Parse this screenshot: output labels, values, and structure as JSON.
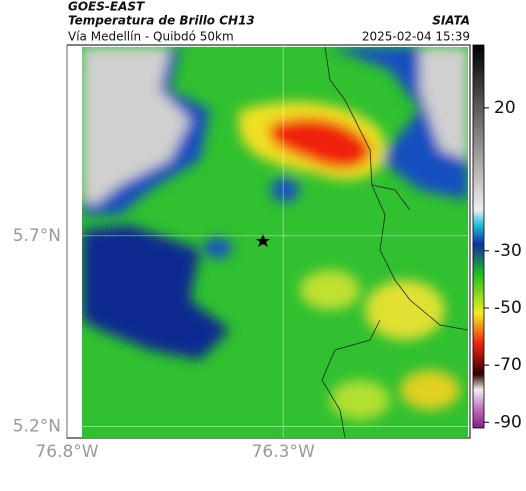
{
  "header": {
    "source": "GOES-EAST",
    "title": "Temperatura de Brillo CH13",
    "subtitle": "Vía Medellín - Quibdó 50km",
    "org": "SIATA",
    "datetime": "2025-02-04 15:39"
  },
  "map": {
    "xlim": [
      -76.8,
      -75.868
    ],
    "ylim": [
      5.17,
      6.2
    ],
    "xticks": [
      {
        "value": -76.8,
        "label": "76.8°W"
      },
      {
        "value": -76.3,
        "label": "76.3°W"
      }
    ],
    "yticks": [
      {
        "value": 5.7,
        "label": "5.7°N"
      },
      {
        "value": 5.2,
        "label": "5.2°N"
      }
    ],
    "grid": true
  },
  "colorbar": {
    "lim": [
      42,
      -92
    ],
    "ticks": [
      20,
      -30,
      -50,
      -70,
      -90
    ]
  }
}
